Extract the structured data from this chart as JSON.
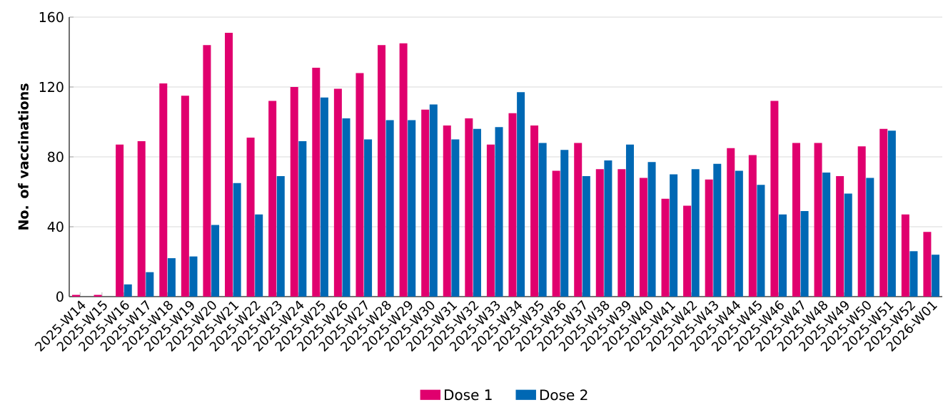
{
  "chart_data": {
    "type": "bar",
    "ylabel": "No. of vaccinations",
    "categories": [
      "2025-W14",
      "2025-W15",
      "2025-W16",
      "2025-W17",
      "2025-W18",
      "2025-W19",
      "2025-W20",
      "2025-W21",
      "2025-W22",
      "2025-W23",
      "2025-W24",
      "2025-W25",
      "2025-W26",
      "2025-W27",
      "2025-W28",
      "2025-W29",
      "2025-W30",
      "2025-W31",
      "2025-W32",
      "2025-W33",
      "2025-W34",
      "2025-W35",
      "2025-W36",
      "2025-W37",
      "2025-W38",
      "2025-W39",
      "2025-W40",
      "2025-W41",
      "2025-W42",
      "2025-W43",
      "2025-W44",
      "2025-W45",
      "2025-W46",
      "2025-W47",
      "2025-W48",
      "2025-W49",
      "2025-W50",
      "2025-W51",
      "2025-W52",
      "2026-W01"
    ],
    "series": [
      {
        "name": "Dose 1",
        "color": "#e0006e",
        "values": [
          1,
          1,
          87,
          89,
          122,
          115,
          144,
          151,
          91,
          112,
          120,
          131,
          119,
          128,
          144,
          145,
          107,
          98,
          102,
          87,
          105,
          98,
          72,
          88,
          73,
          73,
          68,
          56,
          52,
          67,
          85,
          81,
          112,
          88,
          88,
          69,
          86,
          96,
          47,
          37
        ]
      },
      {
        "name": "Dose 2",
        "color": "#0068b4",
        "values": [
          0,
          0,
          7,
          14,
          22,
          23,
          41,
          65,
          47,
          69,
          89,
          114,
          102,
          90,
          101,
          101,
          110,
          90,
          96,
          97,
          117,
          88,
          84,
          69,
          78,
          87,
          77,
          70,
          73,
          76,
          72,
          64,
          47,
          49,
          71,
          59,
          68,
          95,
          26,
          24
        ]
      }
    ],
    "ylim": [
      0,
      160
    ],
    "yticks": [
      0,
      40,
      80,
      120,
      160
    ],
    "grid": "y",
    "legend": "bottom"
  }
}
